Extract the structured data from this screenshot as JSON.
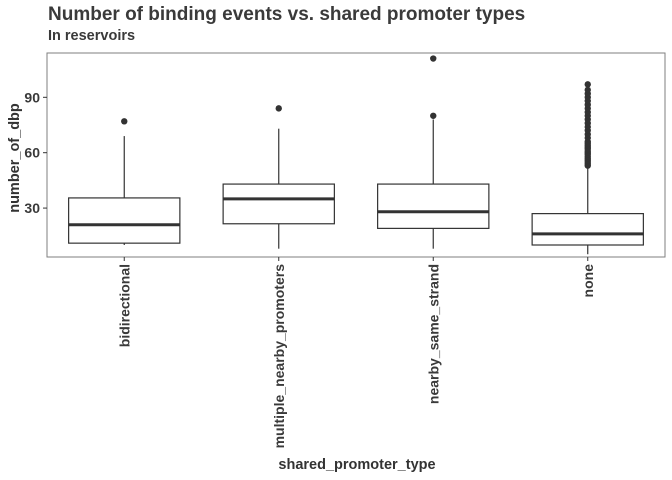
{
  "chart_data": {
    "type": "boxplot",
    "title": "Number of binding events vs. shared promoter types",
    "subtitle": "In reservoirs",
    "xlabel": "shared_promoter_type",
    "ylabel": "number_of_dbp",
    "ylim": [
      3.5,
      114
    ],
    "yticks": [
      30,
      60,
      90
    ],
    "grid": false,
    "categories": [
      "bidirectional",
      "multiple_nearby_promoters",
      "nearby_same_strand",
      "none"
    ],
    "boxes": [
      {
        "category": "bidirectional",
        "lower_whisker": 10,
        "q1": 11,
        "median": 21,
        "q3": 35.5,
        "upper_whisker": 69,
        "outliers": [
          77
        ]
      },
      {
        "category": "multiple_nearby_promoters",
        "lower_whisker": 8,
        "q1": 21.5,
        "median": 35,
        "q3": 43,
        "upper_whisker": 73,
        "outliers": [
          84
        ]
      },
      {
        "category": "nearby_same_strand",
        "lower_whisker": 8,
        "q1": 19,
        "median": 28,
        "q3": 43,
        "upper_whisker": 78,
        "outliers": [
          80,
          111
        ]
      },
      {
        "category": "none",
        "lower_whisker": 5,
        "q1": 10,
        "median": 16,
        "q3": 27,
        "upper_whisker": 52,
        "outliers": [
          53,
          54,
          55,
          56,
          57,
          58,
          59,
          60,
          61,
          62,
          63,
          64,
          65,
          66,
          68,
          70,
          72,
          74,
          76,
          78,
          80,
          82,
          84,
          86,
          88,
          90,
          92,
          94,
          97
        ]
      }
    ]
  }
}
